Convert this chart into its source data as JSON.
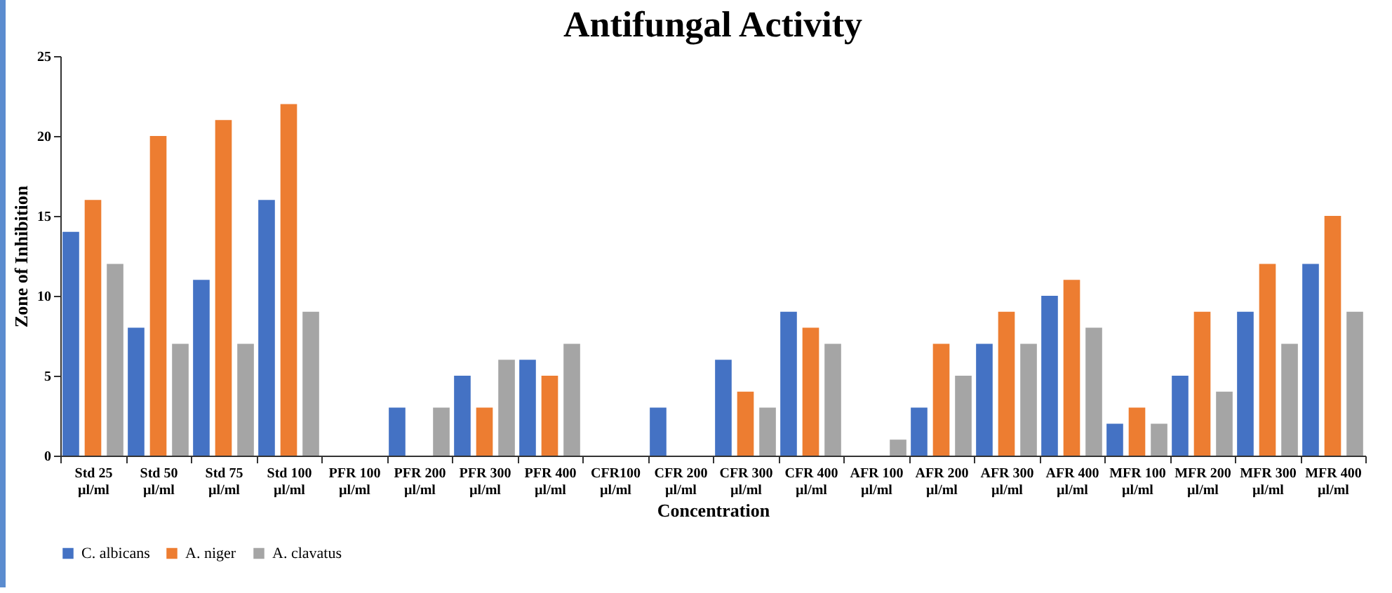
{
  "chart_data": {
    "type": "bar",
    "title": "Antifungal Activity",
    "xlabel": "Concentration",
    "ylabel": "Zone of Inhibition",
    "categories": [
      "Std 25 µl/ml",
      "Std 50 µl/ml",
      "Std 75 µl/ml",
      "Std 100 µl/ml",
      "PFR 100 µl/ml",
      "PFR 200 µl/ml",
      "PFR 300 µl/ml",
      "PFR 400 µl/ml",
      "CFR100 µl/ml",
      "CFR 200 µl/ml",
      "CFR 300 µl/ml",
      "CFR 400 µl/ml",
      "AFR 100 µl/ml",
      "AFR 200 µl/ml",
      "AFR 300 µl/ml",
      "AFR 400 µl/ml",
      "MFR 100 µl/ml",
      "MFR 200 µl/ml",
      "MFR 300 µl/ml",
      "MFR 400 µl/ml"
    ],
    "series": [
      {
        "name": "C. albicans",
        "color": "#4472c4",
        "values": [
          14,
          8,
          11,
          16,
          0,
          3,
          5,
          6,
          0,
          3,
          6,
          9,
          0,
          3,
          7,
          10,
          2,
          5,
          9,
          12
        ]
      },
      {
        "name": "A. niger",
        "color": "#ed7d31",
        "values": [
          16,
          20,
          21,
          22,
          0,
          0,
          3,
          5,
          0,
          0,
          4,
          8,
          0,
          7,
          9,
          11,
          3,
          9,
          12,
          15
        ]
      },
      {
        "name": "A. clavatus",
        "color": "#a5a5a5",
        "values": [
          12,
          7,
          7,
          9,
          0,
          3,
          6,
          7,
          0,
          0,
          3,
          7,
          1,
          5,
          7,
          8,
          2,
          4,
          7,
          9
        ]
      }
    ],
    "ylim": [
      0,
      25
    ],
    "yticks": [
      0,
      5,
      10,
      15,
      20,
      25
    ],
    "grid": false,
    "legend": "bottom"
  }
}
